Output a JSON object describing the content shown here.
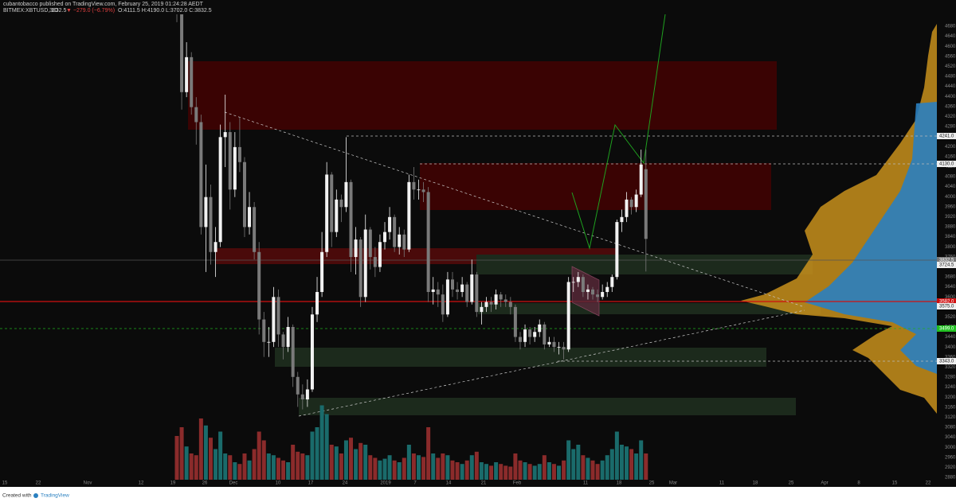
{
  "header": {
    "publisher": "cubantobacco published on TradingView.com, February 25, 2019 01:24:28 AEDT",
    "symbol": "BITMEX:XBTUSD, 1D",
    "last": "3832.5",
    "change": "▼ −279.0 (−6.79%)",
    "ohlc": "O:4111.5 H:4190.0 L:3702.0 C:3832.5"
  },
  "price_axis": [
    "4680.0",
    "4640.0",
    "4600.0",
    "4560.0",
    "4520.0",
    "4480.0",
    "4440.0",
    "4400.0",
    "4360.0",
    "4320.0",
    "4280.0",
    "4240.0",
    "4200.0",
    "4160.0",
    "4120.0",
    "4080.0",
    "4040.0",
    "4000.0",
    "3960.0",
    "3920.0",
    "3880.0",
    "3840.0",
    "3800.0",
    "3760.0",
    "3720.0",
    "3680.0",
    "3640.0",
    "3600.0",
    "3560.0",
    "3520.0",
    "3480.0",
    "3440.0",
    "3400.0",
    "3360.0",
    "3320.0",
    "3280.0",
    "3240.0",
    "3200.0",
    "3160.0",
    "3120.0",
    "3080.0",
    "3040.0",
    "3000.0",
    "2960.0",
    "2920.0",
    "2880.0"
  ],
  "price_tags": [
    {
      "label": "4241.0",
      "kind": "plain"
    },
    {
      "label": "4130.0",
      "kind": "plain"
    },
    {
      "label": "3832.5",
      "kind": "last"
    },
    {
      "label": "3724.5",
      "kind": "plain"
    },
    {
      "label": "3582.0",
      "kind": "red"
    },
    {
      "label": "3575.0",
      "kind": "plain"
    },
    {
      "label": "3499.0",
      "kind": "green"
    },
    {
      "label": "3343.0",
      "kind": "plain"
    }
  ],
  "time_axis": [
    "15",
    "22",
    "Nov",
    "12",
    "19",
    "26",
    "Dec",
    "10",
    "17",
    "24",
    "2019",
    "7",
    "14",
    "21",
    "Feb",
    "11",
    "18",
    "25",
    "Mar",
    "11",
    "18",
    "25",
    "Apr",
    "8",
    "15",
    "22"
  ],
  "candles": [
    [
      4900,
      4950,
      4700,
      4760
    ],
    [
      4760,
      4800,
      4350,
      4420
    ],
    [
      4420,
      4620,
      4400,
      4560
    ],
    [
      4560,
      4580,
      4330,
      4360
    ],
    [
      4360,
      4400,
      4210,
      4300
    ],
    [
      4300,
      4330,
      3850,
      3880
    ],
    [
      3880,
      4130,
      3700,
      4000
    ],
    [
      4000,
      4050,
      3730,
      3780
    ],
    [
      3780,
      3880,
      3680,
      3820
    ],
    [
      3820,
      4290,
      3800,
      4240
    ],
    [
      4240,
      4410,
      4120,
      4260
    ],
    [
      4260,
      4300,
      3950,
      4030
    ],
    [
      4030,
      4260,
      4000,
      4200
    ],
    [
      4200,
      4320,
      4100,
      4140
    ],
    [
      4140,
      4160,
      3840,
      3880
    ],
    [
      3880,
      4020,
      3850,
      3960
    ],
    [
      3960,
      3980,
      3750,
      3780
    ],
    [
      3780,
      3820,
      3450,
      3510
    ],
    [
      3510,
      3540,
      3360,
      3420
    ],
    [
      3420,
      3480,
      3360,
      3420
    ],
    [
      3420,
      3640,
      3400,
      3600
    ],
    [
      3600,
      3630,
      3400,
      3450
    ],
    [
      3450,
      3460,
      3350,
      3400
    ],
    [
      3400,
      3520,
      3380,
      3480
    ],
    [
      3480,
      3490,
      3240,
      3280
    ],
    [
      3280,
      3300,
      3160,
      3210
    ],
    [
      3210,
      3250,
      3150,
      3190
    ],
    [
      3190,
      3270,
      3160,
      3230
    ],
    [
      3230,
      3560,
      3220,
      3530
    ],
    [
      3530,
      3680,
      3500,
      3620
    ],
    [
      3620,
      3860,
      3600,
      3780
    ],
    [
      3780,
      4140,
      3760,
      4090
    ],
    [
      4090,
      4100,
      3800,
      3860
    ],
    [
      3860,
      4030,
      3840,
      3990
    ],
    [
      3990,
      4010,
      3900,
      3960
    ],
    [
      3960,
      4240,
      3940,
      4060
    ],
    [
      4060,
      4070,
      3700,
      3760
    ],
    [
      3760,
      3880,
      3690,
      3830
    ],
    [
      3830,
      3840,
      3560,
      3600
    ],
    [
      3600,
      3930,
      3580,
      3870
    ],
    [
      3870,
      3880,
      3710,
      3760
    ],
    [
      3760,
      3800,
      3680,
      3720
    ],
    [
      3720,
      3850,
      3700,
      3820
    ],
    [
      3820,
      3900,
      3790,
      3860
    ],
    [
      3860,
      3960,
      3830,
      3920
    ],
    [
      3920,
      3930,
      3780,
      3800
    ],
    [
      3800,
      3880,
      3770,
      3850
    ],
    [
      3850,
      3870,
      3760,
      3790
    ],
    [
      3790,
      4090,
      3780,
      4060
    ],
    [
      4060,
      4120,
      3990,
      4030
    ],
    [
      4030,
      4070,
      3990,
      4030
    ],
    [
      4030,
      4060,
      3980,
      4020
    ],
    [
      4020,
      4040,
      3580,
      3620
    ],
    [
      3620,
      3680,
      3570,
      3630
    ],
    [
      3630,
      3660,
      3560,
      3610
    ],
    [
      3610,
      3650,
      3500,
      3530
    ],
    [
      3530,
      3700,
      3520,
      3670
    ],
    [
      3670,
      3700,
      3600,
      3630
    ],
    [
      3630,
      3660,
      3590,
      3620
    ],
    [
      3620,
      3680,
      3600,
      3650
    ],
    [
      3650,
      3660,
      3560,
      3580
    ],
    [
      3580,
      3750,
      3570,
      3690
    ],
    [
      3690,
      3700,
      3520,
      3540
    ],
    [
      3540,
      3580,
      3490,
      3560
    ],
    [
      3560,
      3600,
      3540,
      3580
    ],
    [
      3580,
      3600,
      3540,
      3570
    ],
    [
      3570,
      3630,
      3550,
      3610
    ],
    [
      3610,
      3620,
      3560,
      3590
    ],
    [
      3590,
      3610,
      3560,
      3580
    ],
    [
      3580,
      3600,
      3530,
      3560
    ],
    [
      3560,
      3570,
      3420,
      3440
    ],
    [
      3440,
      3460,
      3390,
      3420
    ],
    [
      3420,
      3490,
      3400,
      3470
    ],
    [
      3470,
      3480,
      3410,
      3440
    ],
    [
      3440,
      3480,
      3420,
      3460
    ],
    [
      3460,
      3510,
      3440,
      3490
    ],
    [
      3490,
      3500,
      3390,
      3410
    ],
    [
      3410,
      3440,
      3400,
      3420
    ],
    [
      3420,
      3440,
      3380,
      3400
    ],
    [
      3400,
      3420,
      3370,
      3400
    ],
    [
      3400,
      3420,
      3350,
      3390
    ],
    [
      3390,
      3680,
      3380,
      3660
    ],
    [
      3660,
      3680,
      3620,
      3660
    ],
    [
      3660,
      3700,
      3640,
      3680
    ],
    [
      3680,
      3690,
      3600,
      3620
    ],
    [
      3620,
      3650,
      3590,
      3630
    ],
    [
      3630,
      3640,
      3590,
      3610
    ],
    [
      3610,
      3630,
      3580,
      3600
    ],
    [
      3600,
      3650,
      3590,
      3620
    ],
    [
      3620,
      3660,
      3600,
      3640
    ],
    [
      3640,
      3690,
      3620,
      3680
    ],
    [
      3680,
      3910,
      3670,
      3900
    ],
    [
      3900,
      3950,
      3860,
      3920
    ],
    [
      3920,
      4020,
      3900,
      3990
    ],
    [
      3990,
      4000,
      3930,
      3960
    ],
    [
      3960,
      4030,
      3940,
      4010
    ],
    [
      4010,
      4190,
      4000,
      4130
    ],
    [
      4111.5,
      4190,
      3702,
      3832.5
    ]
  ],
  "volume": [
    50,
    60,
    38,
    30,
    28,
    70,
    62,
    48,
    35,
    55,
    30,
    28,
    20,
    18,
    30,
    22,
    35,
    55,
    45,
    30,
    28,
    25,
    22,
    20,
    40,
    32,
    30,
    28,
    55,
    60,
    85,
    75,
    40,
    38,
    30,
    45,
    48,
    35,
    42,
    40,
    28,
    25,
    22,
    24,
    28,
    22,
    20,
    25,
    40,
    30,
    28,
    26,
    60,
    30,
    25,
    30,
    28,
    22,
    20,
    18,
    22,
    28,
    32,
    20,
    18,
    16,
    20,
    18,
    16,
    15,
    30,
    22,
    20,
    18,
    16,
    18,
    28,
    20,
    18,
    16,
    22,
    45,
    35,
    40,
    28,
    25,
    22,
    18,
    22,
    28,
    35,
    55,
    40,
    38,
    35,
    30,
    45,
    30
  ],
  "footer": {
    "created": "Created with",
    "brand": "TradingView"
  }
}
